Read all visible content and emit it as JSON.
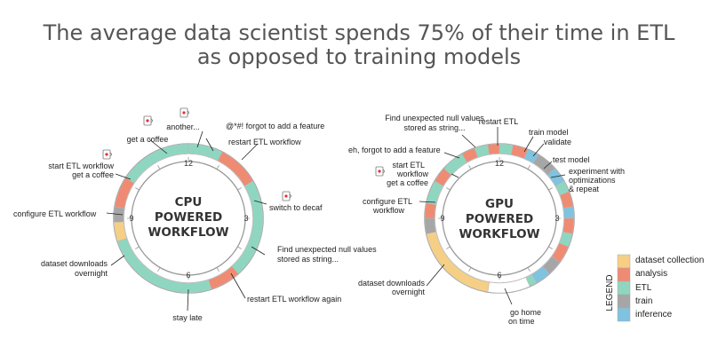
{
  "title": {
    "line1": "The average data scientist spends 75% of their time in ETL",
    "line2": "as opposed to training models"
  },
  "colors": {
    "dataset_collection": "#f5cf85",
    "analysis": "#ef8b73",
    "etl": "#8fd6c0",
    "train": "#a6a6a6",
    "inference": "#7fc3e0",
    "empty": "#ffffff"
  },
  "cpu": {
    "center": [
      "CPU",
      "POWERED",
      "WORKFLOW"
    ],
    "hours": [
      "12",
      "3",
      "6",
      "9"
    ],
    "labels": {
      "coffee": "get a coffee",
      "another": "another...",
      "forgot": "@*#! forgot to add a feature",
      "restart": "restart ETL workflow",
      "start": [
        "start ETL workflow",
        "get a coffee"
      ],
      "decaf": "switch to decaf",
      "configure": "configure ETL workflow",
      "nulls": [
        "Find unexpected null values",
        "stored as string..."
      ],
      "downloads": [
        "dataset downloads",
        "overnight"
      ],
      "restart_again": "restart ETL workflow again",
      "late": "stay late"
    }
  },
  "gpu": {
    "center": [
      "GPU",
      "POWERED",
      "WORKFLOW"
    ],
    "hours": [
      "12",
      "3",
      "6",
      "9"
    ],
    "labels": {
      "nulls": [
        "Find unexpected null values",
        "stored as string..."
      ],
      "restart": "restart ETL",
      "train": "train model",
      "validate": "validate",
      "forgot": "eh, forgot to add a feature",
      "start": [
        "start ETL",
        "workflow",
        "get a coffee"
      ],
      "test": "test model",
      "experiment": [
        "experiment with",
        "optimizations",
        "& repeat"
      ],
      "configure": [
        "configure ETL",
        "workflow"
      ],
      "downloads": [
        "dataset downloads",
        "overnight"
      ],
      "home": [
        "go home",
        "on time"
      ]
    }
  },
  "legend": {
    "title": "LEGEND",
    "items": [
      "dataset collection",
      "analysis",
      "ETL",
      "train",
      "inference"
    ]
  }
}
